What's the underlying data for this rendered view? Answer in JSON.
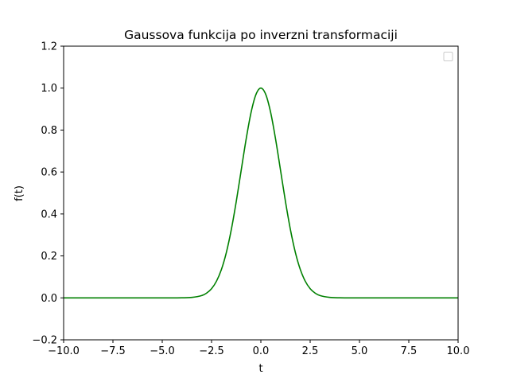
{
  "chart_data": {
    "type": "line",
    "title": "Gaussova funkcija po inverzni transformaciji",
    "xlabel": "t",
    "ylabel": "f(t)",
    "xlim": [
      -10,
      10
    ],
    "ylim": [
      -0.2,
      1.2
    ],
    "xticks": [
      -10.0,
      -7.5,
      -5.0,
      -2.5,
      0.0,
      2.5,
      5.0,
      7.5,
      10.0
    ],
    "xtick_labels": [
      "−10.0",
      "−7.5",
      "−5.0",
      "−2.5",
      "0.0",
      "2.5",
      "5.0",
      "7.5",
      "10.0"
    ],
    "yticks": [
      -0.2,
      0.0,
      0.2,
      0.4,
      0.6,
      0.8,
      1.0,
      1.2
    ],
    "ytick_labels": [
      "−0.2",
      "0.0",
      "0.2",
      "0.4",
      "0.6",
      "0.8",
      "1.0",
      "1.2"
    ],
    "grid": false,
    "legend": {
      "placement": "upper right",
      "entries": []
    },
    "series": [
      {
        "color": "#008000",
        "x": [
          -10,
          -9,
          -8,
          -7,
          -6,
          -5,
          -4.5,
          -4,
          -3.5,
          -3,
          -2.75,
          -2.5,
          -2.25,
          -2,
          -1.75,
          -1.5,
          -1.25,
          -1,
          -0.75,
          -0.5,
          -0.25,
          0,
          0.25,
          0.5,
          0.75,
          1,
          1.25,
          1.5,
          1.75,
          2,
          2.25,
          2.5,
          2.75,
          3,
          3.5,
          4,
          4.5,
          5,
          6,
          7,
          8,
          9,
          10
        ],
        "y": [
          0,
          0,
          0,
          0,
          0,
          0,
          0,
          0.0003,
          0.0022,
          0.0111,
          0.0228,
          0.0439,
          0.0796,
          0.1353,
          0.2163,
          0.3247,
          0.4578,
          0.6065,
          0.7548,
          0.8825,
          0.9692,
          1.0,
          0.9692,
          0.8825,
          0.7548,
          0.6065,
          0.4578,
          0.3247,
          0.2163,
          0.1353,
          0.0796,
          0.0439,
          0.0228,
          0.0111,
          0.0022,
          0.0003,
          0,
          0,
          0,
          0,
          0,
          0,
          0
        ]
      }
    ]
  }
}
